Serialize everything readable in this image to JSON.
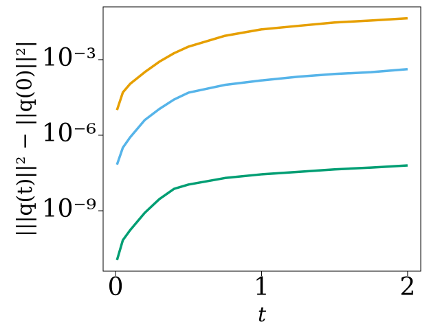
{
  "chart_data": {
    "type": "line",
    "yscale": "log",
    "xlabel": "t",
    "ylabel": "|||q(t)||² − ||q(0)||²|",
    "x": [
      0.01,
      0.05,
      0.1,
      0.2,
      0.3,
      0.4,
      0.5,
      0.75,
      1,
      1.25,
      1.5,
      1.75,
      2
    ],
    "series": [
      {
        "color": "#e69f00",
        "values": [
          1e-05,
          5e-05,
          0.00011,
          0.00032,
          0.00083,
          0.0018,
          0.0033,
          0.0089,
          0.016,
          0.022,
          0.03,
          0.036,
          0.044
        ]
      },
      {
        "color": "#56b4e9",
        "values": [
          6.8e-08,
          3.2e-07,
          8.3e-07,
          4e-06,
          1.1e-05,
          2.6e-05,
          4.9e-05,
          0.0001,
          0.00015,
          0.00021,
          0.00027,
          0.00032,
          0.00042
        ]
      },
      {
        "color": "#009e73",
        "values": [
          1.1e-11,
          6.8e-11,
          1.7e-10,
          8.3e-10,
          2.9e-09,
          7.4e-09,
          1.1e-08,
          2e-08,
          2.8e-08,
          3.5e-08,
          4.4e-08,
          5.2e-08,
          6.3e-08
        ]
      }
    ],
    "xlim": [
      -0.085,
      2.09
    ],
    "xticks": [
      0,
      1,
      2
    ],
    "ylim": [
      4e-12,
      0.125
    ],
    "yticks": [
      {
        "value": 1e-09,
        "label": "10⁻⁹"
      },
      {
        "value": 1e-06,
        "label": "10⁻⁶"
      },
      {
        "value": 0.001,
        "label": "10⁻³"
      }
    ],
    "grid": false
  }
}
